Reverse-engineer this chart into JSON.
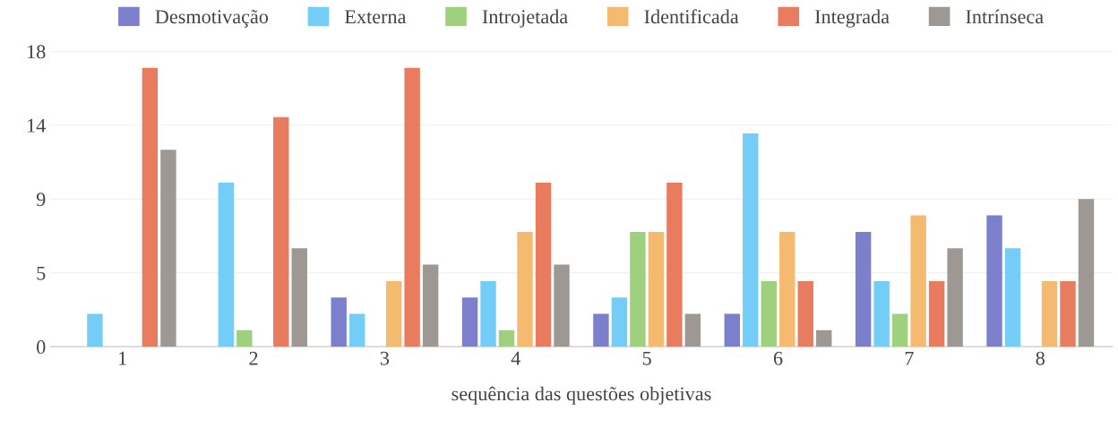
{
  "chart_data": {
    "type": "bar",
    "xlabel": "sequência das questões objetivas",
    "categories": [
      "1",
      "2",
      "3",
      "4",
      "5",
      "6",
      "7",
      "8"
    ],
    "series": [
      {
        "name": "Desmotivação",
        "color": "#7b7fcc",
        "values": [
          0,
          0,
          3,
          3,
          2,
          2,
          7,
          8
        ]
      },
      {
        "name": "Externa",
        "color": "#74cdf7",
        "values": [
          2,
          10,
          2,
          4,
          3,
          13,
          4,
          6
        ]
      },
      {
        "name": "Introjetada",
        "color": "#9ed07e",
        "values": [
          0,
          1,
          0,
          1,
          7,
          4,
          2,
          0
        ]
      },
      {
        "name": "Identificada",
        "color": "#f4bb70",
        "values": [
          0,
          0,
          4,
          7,
          7,
          7,
          8,
          4
        ]
      },
      {
        "name": "Integrada",
        "color": "#e97b5f",
        "values": [
          17,
          14,
          17,
          10,
          10,
          4,
          4,
          4
        ]
      },
      {
        "name": "Intrínseca",
        "color": "#9e9895",
        "values": [
          12,
          6,
          5,
          5,
          2,
          1,
          6,
          9
        ]
      }
    ],
    "ylim": [
      0,
      18
    ],
    "yticks": [
      0,
      {
        "value": 4.5,
        "label": "5"
      },
      {
        "value": 9,
        "label": "9"
      },
      {
        "value": 13.5,
        "label": "14"
      },
      18
    ],
    "grid": "y",
    "legend": "top"
  }
}
